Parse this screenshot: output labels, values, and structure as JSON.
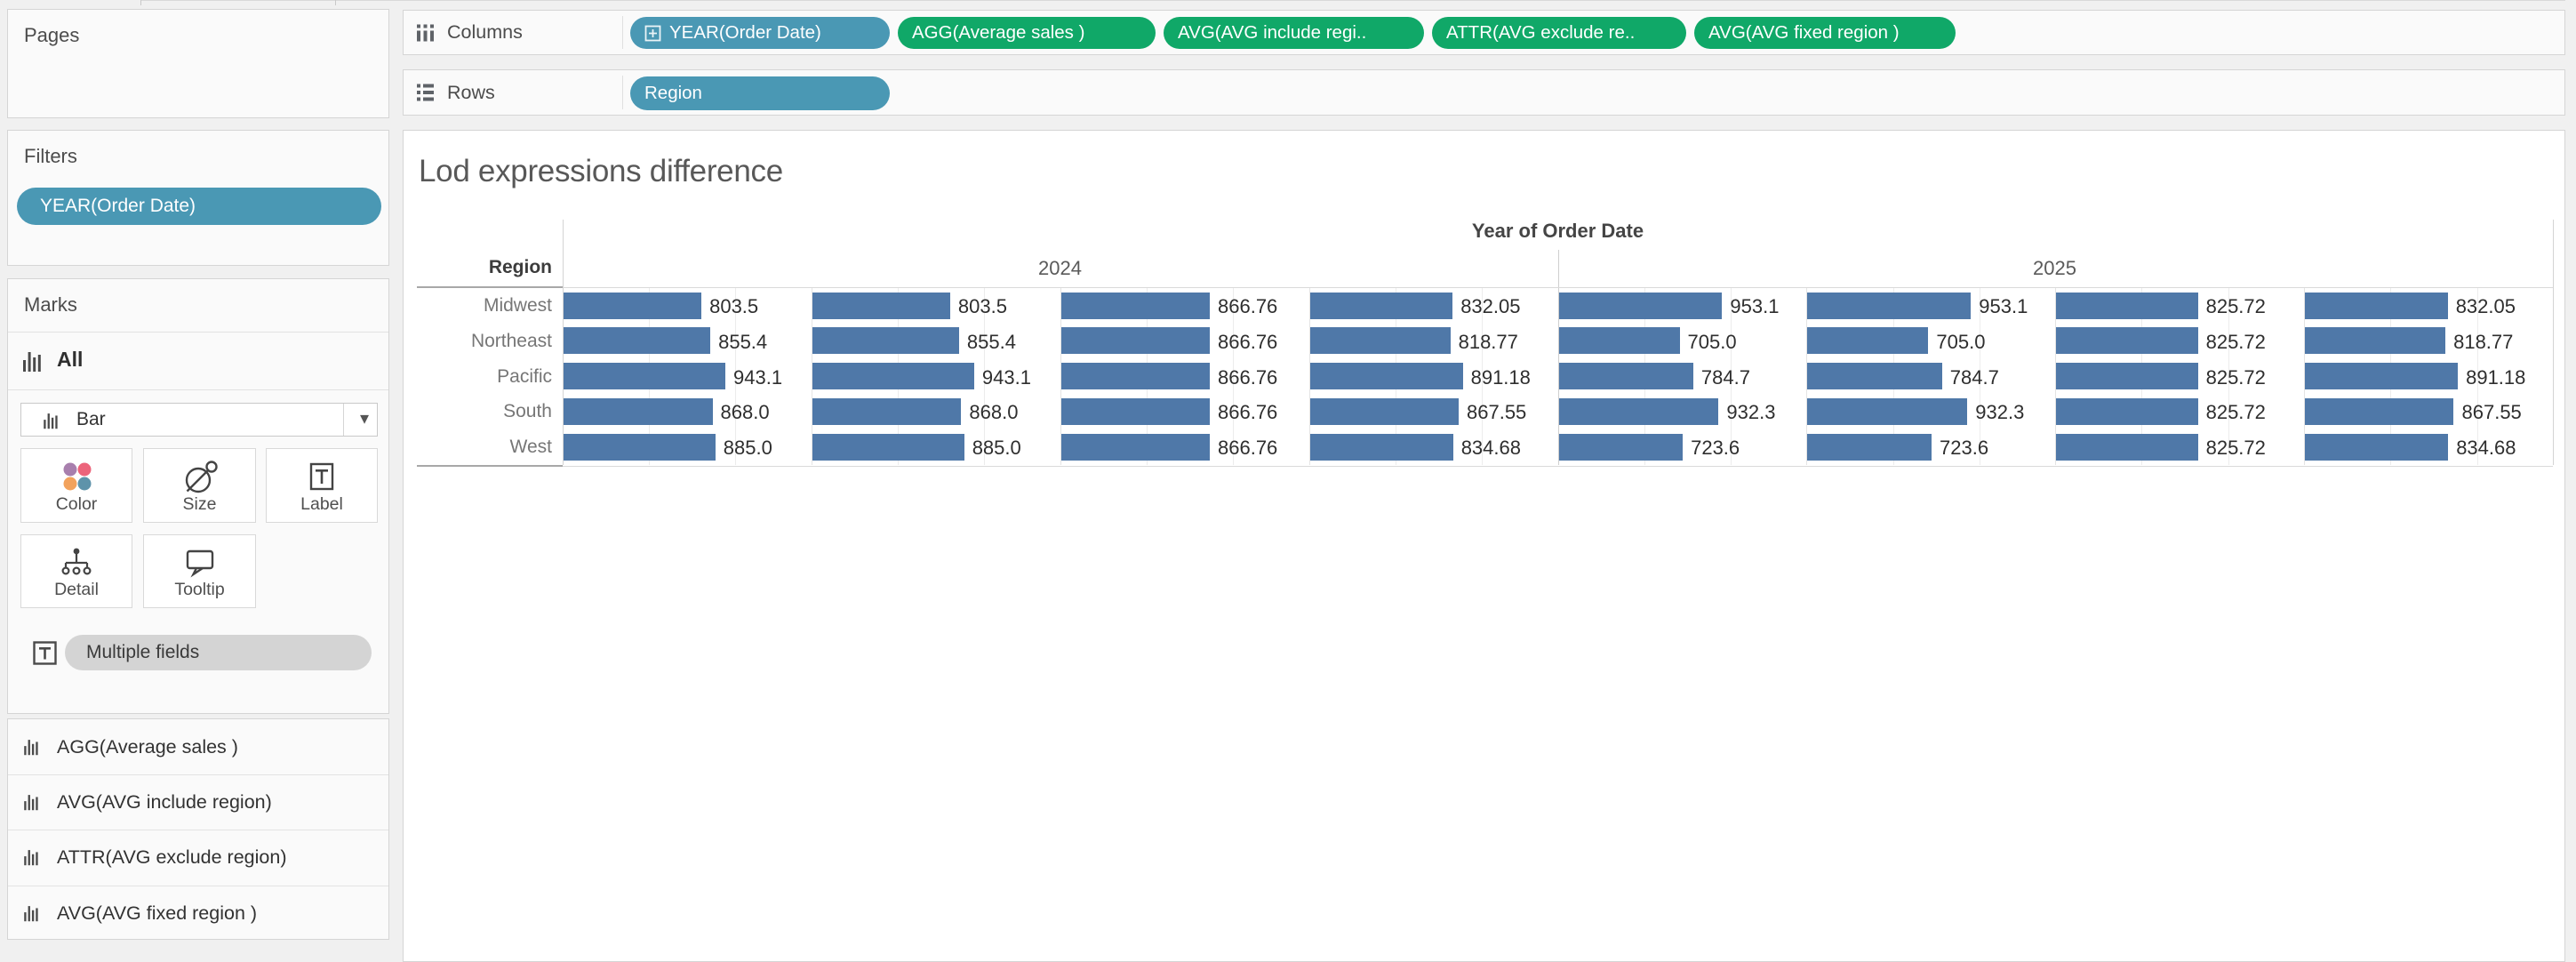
{
  "colors": {
    "dimension_pill": "#4a98b4",
    "measure_pill": "#10a868",
    "bar": "#4f78a8"
  },
  "shelves": {
    "columns_label": "Columns",
    "rows_label": "Rows",
    "columns_pills": [
      {
        "label": "YEAR(Order Date)",
        "kind": "dimension",
        "icon": "plus-box-icon"
      },
      {
        "label": "AGG(Average sales )",
        "kind": "measure"
      },
      {
        "label": "AVG(AVG include regi..",
        "kind": "measure"
      },
      {
        "label": "ATTR(AVG exclude re..",
        "kind": "measure"
      },
      {
        "label": "AVG(AVG fixed region )",
        "kind": "measure"
      }
    ],
    "rows_pills": [
      {
        "label": "Region",
        "kind": "dimension"
      }
    ]
  },
  "sidebar": {
    "pages": {
      "title": "Pages"
    },
    "filters": {
      "title": "Filters",
      "pills": [
        "YEAR(Order Date)"
      ]
    },
    "marks": {
      "title": "Marks",
      "all_label": "All",
      "mark_type": "Bar",
      "buttons": {
        "color": "Color",
        "size": "Size",
        "label": "Label",
        "detail": "Detail",
        "tooltip": "Tooltip"
      },
      "text_shelf_pill": "Multiple fields"
    },
    "measure_cards": [
      "AGG(Average sales )",
      "AVG(AVG include region)",
      "ATTR(AVG exclude region)",
      "AVG(AVG fixed region )"
    ]
  },
  "chart_data": {
    "type": "bar",
    "title": "Lod expressions difference",
    "column_axis_title": "Year of Order Date",
    "column_groups": [
      "2024",
      "2025"
    ],
    "row_header": "Region",
    "measure_columns_per_year": [
      "AGG(Average sales )",
      "AVG(AVG include region)",
      "ATTR(AVG exclude region)",
      "AVG(AVG fixed region )"
    ],
    "xlim": [
      0,
      1440
    ],
    "gridlines_at": [
      500,
      1000
    ],
    "legend": "none",
    "rows": [
      {
        "region": "Midwest",
        "values": [
          803.5,
          803.5,
          866.76,
          832.05,
          953.1,
          953.1,
          825.72,
          832.05
        ],
        "labels": [
          "803.5",
          "803.5",
          "866.76",
          "832.05",
          "953.1",
          "953.1",
          "825.72",
          "832.05"
        ]
      },
      {
        "region": "Northeast",
        "values": [
          855.4,
          855.4,
          866.76,
          818.77,
          705.0,
          705.0,
          825.72,
          818.77
        ],
        "labels": [
          "855.4",
          "855.4",
          "866.76",
          "818.77",
          "705.0",
          "705.0",
          "825.72",
          "818.77"
        ]
      },
      {
        "region": "Pacific",
        "values": [
          943.1,
          943.1,
          866.76,
          891.18,
          784.7,
          784.7,
          825.72,
          891.18
        ],
        "labels": [
          "943.1",
          "943.1",
          "866.76",
          "891.18",
          "784.7",
          "784.7",
          "825.72",
          "891.18"
        ]
      },
      {
        "region": "South",
        "values": [
          868.0,
          868.0,
          866.76,
          867.55,
          932.3,
          932.3,
          825.72,
          867.55
        ],
        "labels": [
          "868.0",
          "868.0",
          "866.76",
          "867.55",
          "932.3",
          "932.3",
          "825.72",
          "867.55"
        ]
      },
      {
        "region": "West",
        "values": [
          885.0,
          885.0,
          866.76,
          834.68,
          723.6,
          723.6,
          825.72,
          834.68
        ],
        "labels": [
          "885.0",
          "885.0",
          "866.76",
          "834.68",
          "723.6",
          "723.6",
          "825.72",
          "834.68"
        ]
      }
    ]
  }
}
